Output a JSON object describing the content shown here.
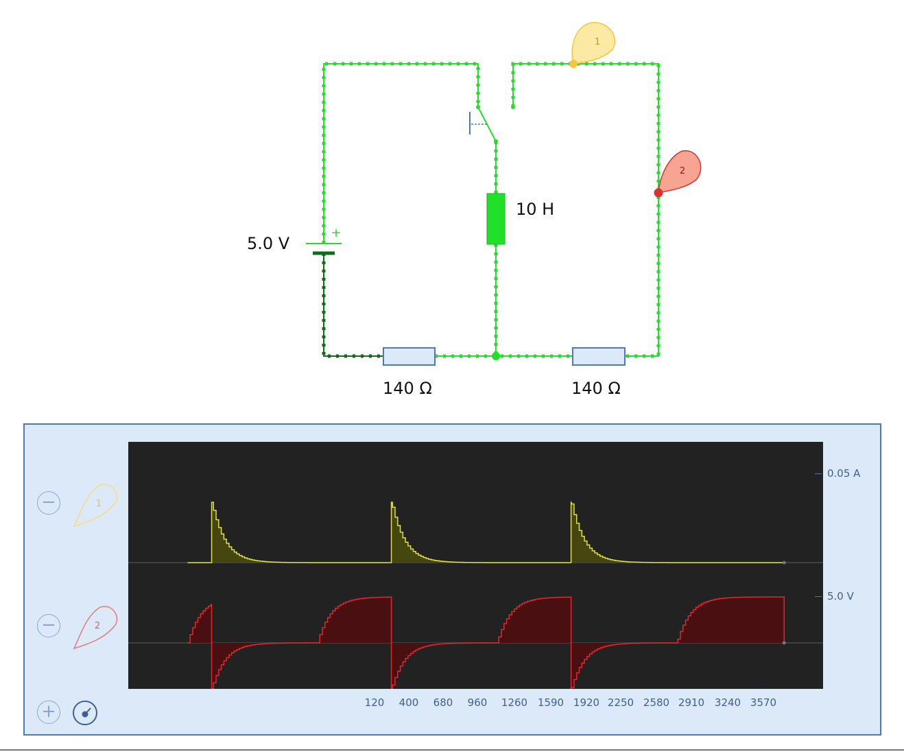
{
  "circuit": {
    "battery_label": "5.0 V",
    "battery_plus": "+",
    "inductor_label": "10 H",
    "resistor1_label": "140 Ω",
    "resistor2_label": "140 Ω",
    "probes": [
      {
        "id": "1",
        "color": "#f5c542",
        "fill": "#fbe9a4"
      },
      {
        "id": "2",
        "color": "#d9322f",
        "fill": "#f7a493"
      }
    ],
    "wire_color": "#22e02a",
    "wire_dark_color": "#0f6d1a"
  },
  "scope": {
    "channels": [
      {
        "probe": "1",
        "scale_label": "0.05 A",
        "remove_label": "−",
        "color": "#e0e040"
      },
      {
        "probe": "2",
        "scale_label": "5.0 V",
        "remove_label": "−",
        "color": "#e0292f"
      }
    ],
    "add_label": "+",
    "x_ticks": [
      "120",
      "400",
      "680",
      "960",
      "1260",
      "1590",
      "1920",
      "2250",
      "2580",
      "2910",
      "3240",
      "3570"
    ]
  },
  "chart_data": {
    "type": "line",
    "x_ticks": [
      120,
      400,
      680,
      960,
      1260,
      1590,
      1920,
      2250,
      2580,
      2910,
      3240,
      3570
    ],
    "series": [
      {
        "name": "1",
        "unit": "A",
        "scale": 0.05,
        "switch_times": [
          450,
          1420,
          2390
        ],
        "pattern": "zero until switch, then jumps to peak and decays exponentially to zero"
      },
      {
        "name": "2",
        "unit": "V",
        "scale": 5.0,
        "switch_times": [
          450,
          1420,
          2390
        ],
        "pattern": "rises exponentially to ~5.0 V, at switch drops negative and relaxes back to 0, then rises again"
      }
    ]
  }
}
